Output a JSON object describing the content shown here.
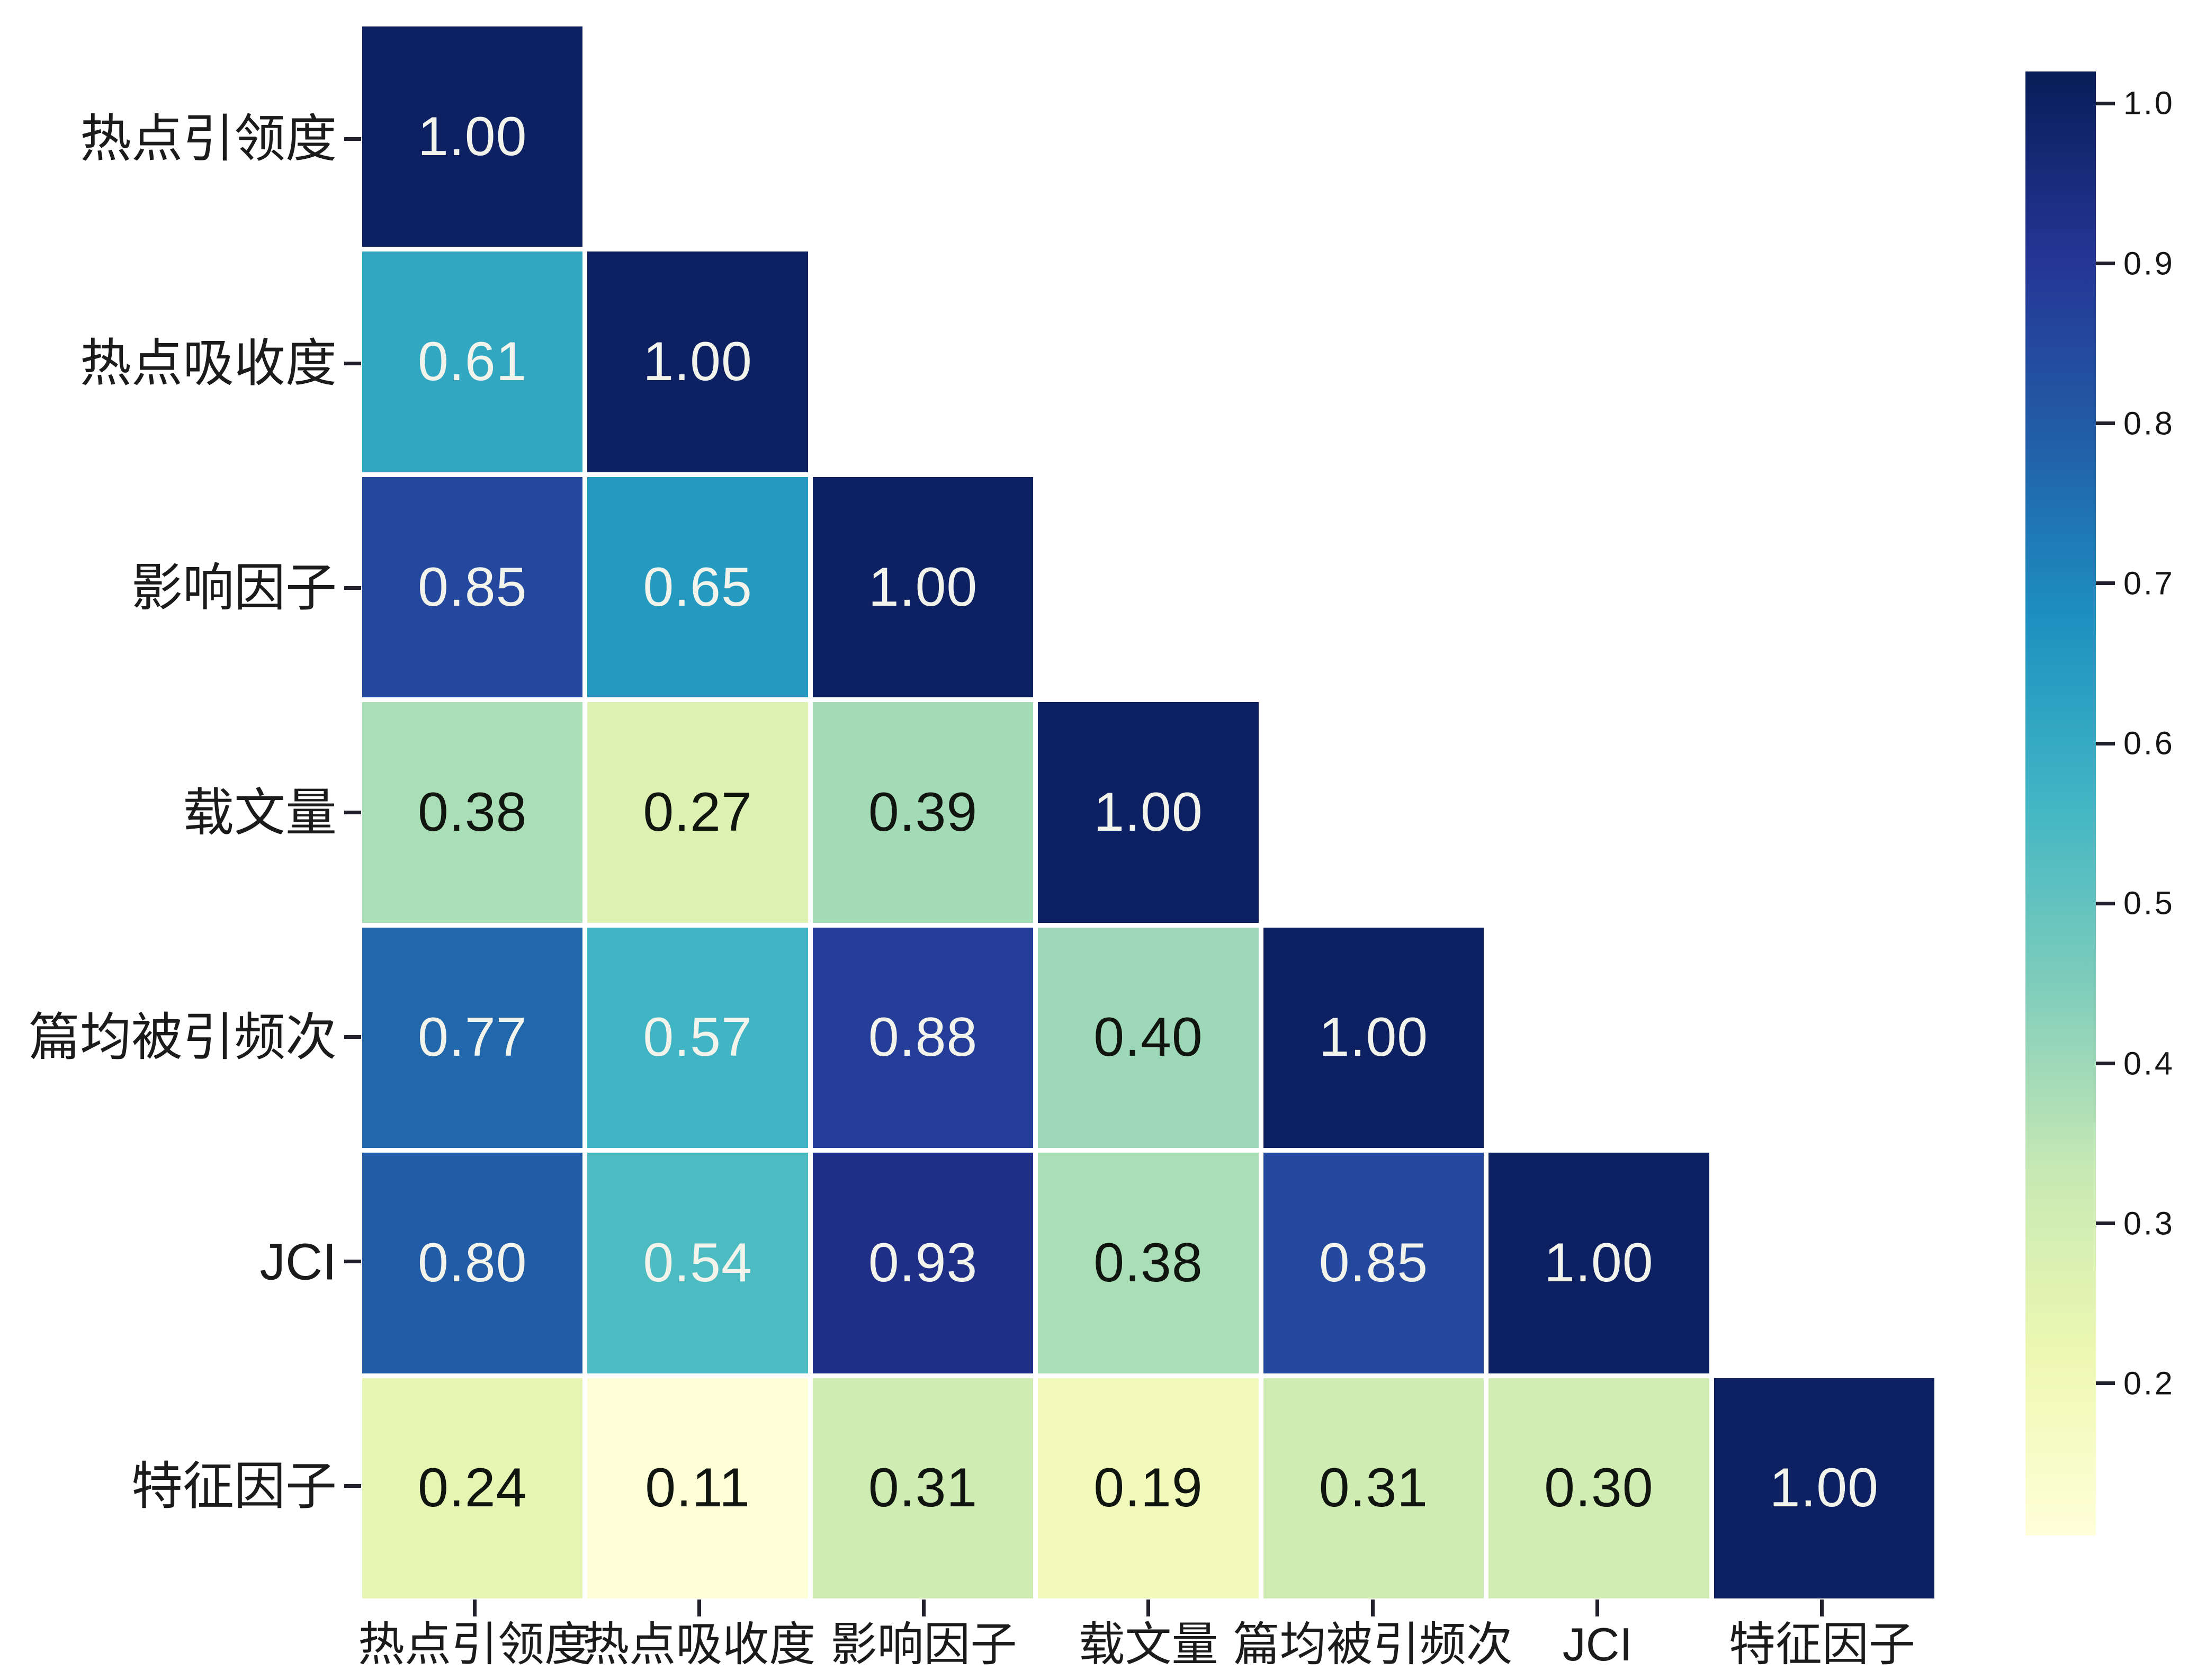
{
  "chart_data": {
    "type": "heatmap",
    "subtype": "correlation-matrix-lower-triangle",
    "title": "",
    "categories": [
      "热点引领度",
      "热点吸收度",
      "影响因子",
      "载文量",
      "篇均被引频次",
      "JCI",
      "特征因子"
    ],
    "matrix": [
      [
        1.0,
        null,
        null,
        null,
        null,
        null,
        null
      ],
      [
        0.61,
        1.0,
        null,
        null,
        null,
        null,
        null
      ],
      [
        0.85,
        0.65,
        1.0,
        null,
        null,
        null,
        null
      ],
      [
        0.38,
        0.27,
        0.39,
        1.0,
        null,
        null,
        null
      ],
      [
        0.77,
        0.57,
        0.88,
        0.4,
        1.0,
        null,
        null
      ],
      [
        0.8,
        0.54,
        0.93,
        0.38,
        0.85,
        1.0,
        null
      ],
      [
        0.24,
        0.11,
        0.31,
        0.19,
        0.31,
        0.3,
        1.0
      ]
    ],
    "value_decimals": 2,
    "vmin": 0.11,
    "vmax": 1.0,
    "color_norm": {
      "min": 0.105,
      "max": 1.02
    },
    "colormap": {
      "name": "YlGnBu",
      "stops": [
        "#ffffd9",
        "#edf8b1",
        "#c7e9b4",
        "#7fcdbb",
        "#41b6c4",
        "#1d91c0",
        "#225ea8",
        "#253494",
        "#081d58"
      ]
    },
    "colorbar": {
      "tick_labels": [
        "1.0",
        "0.9",
        "0.8",
        "0.7",
        "0.6",
        "0.5",
        "0.4",
        "0.3",
        "0.2"
      ],
      "tick_values": [
        1.0,
        0.9,
        0.8,
        0.7,
        0.6,
        0.5,
        0.4,
        0.3,
        0.2
      ],
      "position": "right"
    },
    "annotation_text_threshold": 0.5,
    "annotation_color_light": "#f2f3ea",
    "annotation_color_dark": "#10150f",
    "axis_text_color": "#1b1b1b",
    "tick_mark_color": "#20202c",
    "grid_gap_color": "#ffffff",
    "background": "#ffffff",
    "legend": "none",
    "gridlines": "off"
  }
}
